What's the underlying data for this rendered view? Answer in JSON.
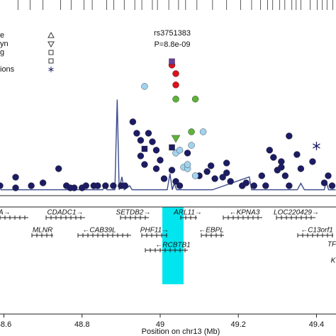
{
  "chart_data": {
    "type": "scatter",
    "annotation": [
      "rs3751383",
      "P=8.8e-09"
    ],
    "x_label": "Position on chr13 (Mb)",
    "xlim": [
      48.59,
      49.45
    ],
    "xticks": [
      48.6,
      48.8,
      49,
      49.2,
      49.4
    ],
    "ylim": [
      0,
      11
    ],
    "legend": [
      "e",
      "yn",
      "g",
      "ions"
    ],
    "series": [
      {
        "color": "#1c1c64",
        "shape": "circle",
        "x": [
          48.59,
          48.63,
          48.63,
          48.67,
          48.7,
          48.74,
          48.76,
          48.77,
          48.78,
          48.8,
          48.81,
          48.83,
          48.84,
          48.86,
          48.88,
          48.9,
          48.91,
          48.93,
          48.94,
          48.95,
          48.95,
          48.96,
          48.97,
          48.98,
          48.99,
          48.99,
          49.0,
          49.01,
          49.03,
          49.04,
          49.05,
          49.07,
          49.1,
          49.12,
          49.13,
          49.14,
          49.16,
          49.17,
          49.17,
          49.18,
          49.21,
          49.22,
          49.24,
          49.26,
          49.27,
          49.28,
          49.29,
          49.3,
          49.31,
          49.31,
          49.32,
          49.33,
          49.33,
          49.35,
          49.36,
          49.39,
          49.42,
          49.43,
          49.44
        ],
        "y": [
          0.35,
          0.22,
          0.88,
          0.35,
          0.53,
          1.41,
          0.35,
          0.22,
          0.22,
          0.22,
          0.35,
          0.35,
          0.35,
          0.35,
          0.35,
          0.35,
          0.35,
          4.32,
          3.61,
          3.17,
          2.2,
          1.67,
          3.61,
          3.08,
          1.41,
          2.56,
          1.94,
          0.79,
          1.32,
          0.62,
          0.35,
          2.38,
          0.97,
          1.23,
          1.59,
          0.79,
          0.88,
          1.76,
          1.15,
          0.62,
          0.35,
          0.53,
          0.35,
          0.97,
          0.35,
          2.56,
          2.11,
          1.32,
          1.85,
          1.5,
          0.97,
          0.35,
          3.44,
          2.29,
          1.41,
          1.85,
          0.53,
          0.97,
          0.35
        ]
      },
      {
        "color": "#9fd3ef",
        "shape": "circle",
        "x": [
          48.96,
          49.04,
          49.05,
          49.06,
          49.07,
          49.07,
          49.08,
          49.09,
          49.11
        ],
        "y": [
          6.52,
          2.38,
          2.56,
          1.5,
          1.41,
          1.67,
          2.86,
          0.97,
          3.7
        ]
      },
      {
        "color": "#e0101a",
        "shape": "circle",
        "x": [
          49.03,
          49.04,
          49.04
        ],
        "y": [
          7.84,
          7.31,
          6.61
        ]
      },
      {
        "color": "#5cb335",
        "shape": "circle",
        "x": [
          49.04,
          49.09,
          49.08
        ],
        "y": [
          5.73,
          5.73,
          3.7
        ]
      },
      {
        "color": "#5cb335",
        "shape": "triangle-down",
        "x": [
          49.04
        ],
        "y": [
          3.26
        ]
      },
      {
        "color": "#6a3d9a",
        "shape": "square",
        "x": [
          49.03
        ],
        "y": [
          8.06
        ]
      },
      {
        "color": "#1c1c64",
        "shape": "square",
        "x": [
          48.96,
          49.03
        ],
        "y": [
          2.64,
          2.73
        ]
      },
      {
        "color": "#1c1c64",
        "shape": "star",
        "x": [
          49.4
        ],
        "y": [
          2.82
        ]
      }
    ],
    "recomb": {
      "color": "#3a4a8c",
      "x": [
        48.591,
        48.853,
        48.859,
        48.864,
        48.884,
        48.89,
        48.895,
        48.902,
        48.908,
        48.922,
        48.928,
        49.018,
        49.025,
        49.031,
        49.036,
        49.042,
        49.134,
        49.228,
        49.234,
        49.351,
        49.36,
        49.369,
        49.42,
        49.425,
        49.431,
        49.449
      ],
      "y": [
        0.1,
        0.1,
        0.35,
        0.1,
        0.1,
        5.7,
        0.1,
        0.9,
        0.1,
        0.35,
        0.1,
        0.1,
        1.1,
        0.1,
        0.5,
        0.1,
        0.1,
        0.9,
        0.1,
        0.1,
        0.5,
        0.1,
        0.1,
        0.6,
        0.1,
        0.1
      ]
    },
    "rug": [
      48.636,
      48.667,
      48.7,
      48.745,
      48.772,
      48.805,
      48.826,
      48.863,
      48.881,
      48.908,
      48.935,
      48.953,
      48.98,
      48.993,
      49.022,
      49.047,
      49.065,
      49.094,
      49.134,
      49.17,
      49.206,
      49.234,
      49.257,
      49.275,
      49.288,
      49.306,
      49.319,
      49.337,
      49.348,
      49.36,
      49.384,
      49.402,
      49.415,
      49.427,
      49.442
    ],
    "genes": [
      "IA→",
      "CDADC1→",
      "SETDB2→",
      "ARL11→",
      "←KPNA3",
      "LOC220429→",
      "MLNR",
      "←CAB39L",
      "PHF11→",
      "←EBPL",
      "←C13orf1",
      "←RCBTB1",
      "TF",
      "K"
    ]
  }
}
